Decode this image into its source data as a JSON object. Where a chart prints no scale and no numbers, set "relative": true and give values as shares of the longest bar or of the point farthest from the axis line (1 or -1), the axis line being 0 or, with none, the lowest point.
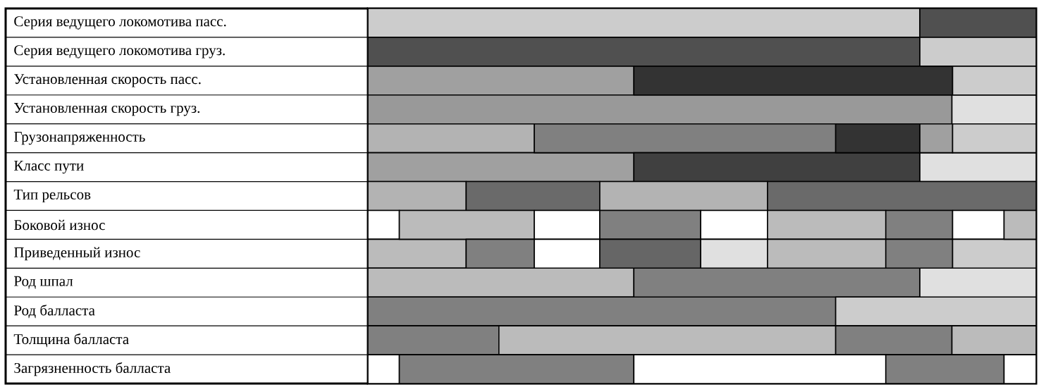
{
  "chart_data": {
    "type": "bar",
    "orientation": "horizontal",
    "stacked": true,
    "relative": true,
    "categories": [
      "Серия ведущего локомотива пасс.",
      "Серия ведущего локомотива груз.",
      "Установленная скорость пасс.",
      "Установленная скорость груз.",
      "Грузонапряженность",
      "Класс пути",
      "Тип рельсов",
      "Боковой износ",
      "Приведенный износ",
      "Род шпал",
      "Род балласта",
      "Толщина балласта",
      "Загрязненность балласта"
    ],
    "series": [
      {
        "values": [
          0.826,
          0.826,
          0.398,
          0.874,
          0.249,
          0.398,
          0.147,
          0.047,
          0.147,
          0.398,
          0.7,
          0.196,
          0.047
        ],
        "colors": [
          "#cccccc",
          "#505050",
          "#a0a0a0",
          "#999999",
          "#b3b3b3",
          "#a0a0a0",
          "#b3b3b3",
          "#ffffff",
          "#bbbbbb",
          "#bbbbbb",
          "#808080",
          "#808080",
          "#ffffff"
        ]
      },
      {
        "values": [
          0.174,
          0.174,
          0.477,
          0.126,
          0.451,
          0.428,
          0.2,
          0.202,
          0.102,
          0.428,
          0.3,
          0.504,
          0.351
        ],
        "colors": [
          "#505050",
          "#cccccc",
          "#333333",
          "#e0e0e0",
          "#808080",
          "#404040",
          "#6a6a6a",
          "#bbbbbb",
          "#808080",
          "#808080",
          "#cccccc",
          "#bbbbbb",
          "#808080"
        ]
      },
      {
        "values": [
          null,
          null,
          0.125,
          null,
          0.126,
          0.174,
          0.251,
          0.098,
          0.098,
          0.174,
          null,
          0.174,
          0.377
        ],
        "colors": [
          null,
          null,
          "#cccccc",
          null,
          "#333333",
          "#e0e0e0",
          "#b3b3b3",
          "#ffffff",
          "#ffffff",
          "#e0e0e0",
          null,
          "#808080",
          "#ffffff"
        ]
      },
      {
        "values": [
          null,
          null,
          null,
          null,
          0.049,
          null,
          0.402,
          0.151,
          0.151,
          null,
          null,
          0.126,
          0.177
        ],
        "colors": [
          null,
          null,
          null,
          null,
          "#a0a0a0",
          null,
          "#6a6a6a",
          "#808080",
          "#666666",
          null,
          null,
          "#bbbbbb",
          "#808080"
        ]
      },
      {
        "values": [
          null,
          null,
          null,
          null,
          0.125,
          null,
          null,
          0.1,
          0.1,
          null,
          null,
          null,
          0.048
        ],
        "colors": [
          null,
          null,
          null,
          null,
          "#cccccc",
          null,
          null,
          "#ffffff",
          "#e0e0e0",
          null,
          null,
          null,
          "#ffffff"
        ]
      },
      {
        "values": [
          null,
          null,
          null,
          null,
          null,
          null,
          null,
          0.177,
          0.177,
          null,
          null,
          null,
          null
        ],
        "colors": [
          null,
          null,
          null,
          null,
          null,
          null,
          null,
          "#bbbbbb",
          "#bbbbbb",
          null,
          null,
          null,
          null
        ]
      },
      {
        "values": [
          null,
          null,
          null,
          null,
          null,
          null,
          null,
          0.1,
          0.1,
          null,
          null,
          null,
          null
        ],
        "colors": [
          null,
          null,
          null,
          null,
          null,
          null,
          null,
          "#808080",
          "#808080",
          null,
          null,
          null,
          null
        ]
      },
      {
        "values": [
          null,
          null,
          null,
          null,
          null,
          null,
          null,
          0.077,
          0.125,
          null,
          null,
          null,
          null
        ],
        "colors": [
          null,
          null,
          null,
          null,
          null,
          null,
          null,
          "#ffffff",
          "#cccccc",
          null,
          null,
          null,
          null
        ]
      },
      {
        "values": [
          null,
          null,
          null,
          null,
          null,
          null,
          null,
          0.048,
          null,
          null,
          null,
          null,
          null
        ],
        "colors": [
          null,
          null,
          null,
          null,
          null,
          null,
          null,
          "#bbbbbb",
          null,
          null,
          null,
          null,
          null
        ]
      }
    ]
  }
}
